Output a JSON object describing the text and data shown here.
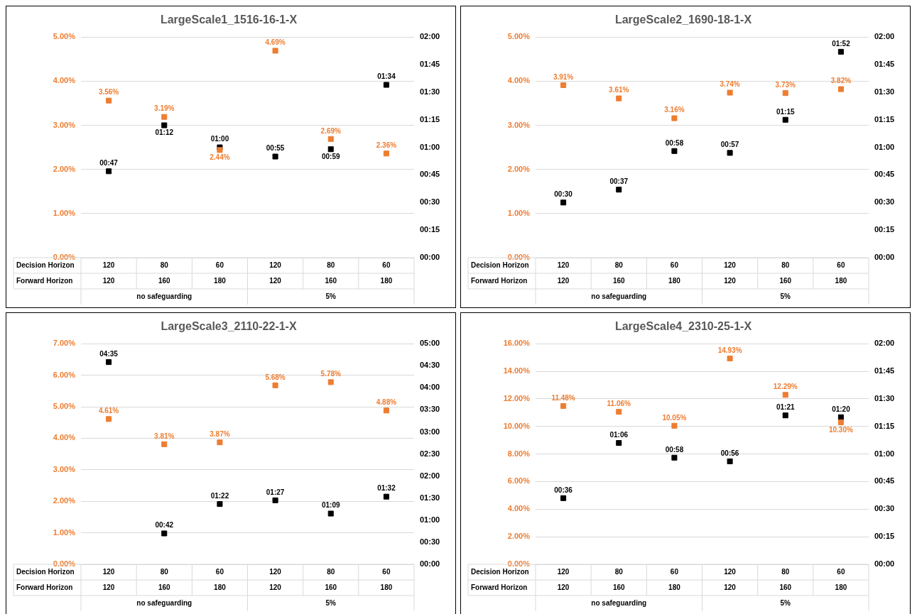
{
  "chart_data": [
    {
      "type": "scatter",
      "title": "LargeScale1_1516-16-1-X",
      "categories": [
        "120",
        "80",
        "60",
        "120",
        "80",
        "60"
      ],
      "marker": "square",
      "grid": "y",
      "legend": false,
      "annotations": [
        "Decision Horizon",
        "Forward Horizon",
        "120",
        "160",
        "180",
        "120",
        "160",
        "180",
        "no safeguarding",
        "5%"
      ],
      "ylim": [
        0,
        5
      ],
      "yticks": [
        {
          "value": 0,
          "label": "0.00%"
        },
        {
          "value": 1,
          "label": "1.00%"
        },
        {
          "value": 2,
          "label": "2.00%"
        },
        {
          "value": 3,
          "label": "3.00%"
        },
        {
          "value": 4,
          "label": "4.00%"
        },
        {
          "value": 5,
          "label": "5.00%"
        }
      ],
      "y2lim": [
        0,
        2
      ],
      "y2ticks": [
        {
          "value": 0,
          "label": "00:00"
        },
        {
          "value": 0.25,
          "label": "00:15"
        },
        {
          "value": 0.5,
          "label": "00:30"
        },
        {
          "value": 0.75,
          "label": "00:45"
        },
        {
          "value": 1,
          "label": "01:00"
        },
        {
          "value": 1.25,
          "label": "01:15"
        },
        {
          "value": 1.5,
          "label": "01:30"
        },
        {
          "value": 1.75,
          "label": "01:45"
        },
        {
          "value": 2,
          "label": "02:00"
        }
      ],
      "series": [
        {
          "color": "#ed7d31",
          "values": [
            3.56,
            3.19,
            2.44,
            4.69,
            2.69,
            2.36
          ],
          "value_labels": [
            "3.56%",
            "3.19%",
            "2.44%",
            "4.69%",
            "2.69%",
            "2.36%"
          ]
        },
        {
          "color": "#000000",
          "axis": "y2",
          "values": [
            0.7833,
            1.2,
            1,
            0.9167,
            0.9833,
            1.5667
          ],
          "value_labels": [
            "00:47",
            "01:12",
            "01:00",
            "00:55",
            "00:59",
            "01:34"
          ]
        }
      ]
    },
    {
      "type": "scatter",
      "title": "LargeScale2_1690-18-1-X",
      "categories": [
        "120",
        "80",
        "60",
        "120",
        "80",
        "60"
      ],
      "marker": "square",
      "grid": "y",
      "legend": false,
      "annotations": [
        "Decision Horizon",
        "Forward Horizon",
        "120",
        "160",
        "180",
        "120",
        "160",
        "180",
        "no safeguarding",
        "5%"
      ],
      "ylim": [
        0,
        5
      ],
      "yticks": [
        {
          "value": 0,
          "label": "0.00%"
        },
        {
          "value": 1,
          "label": "1.00%"
        },
        {
          "value": 2,
          "label": "2.00%"
        },
        {
          "value": 3,
          "label": "3.00%"
        },
        {
          "value": 4,
          "label": "4.00%"
        },
        {
          "value": 5,
          "label": "5.00%"
        }
      ],
      "y2lim": [
        0,
        2
      ],
      "y2ticks": [
        {
          "value": 0,
          "label": "00:00"
        },
        {
          "value": 0.25,
          "label": "00:15"
        },
        {
          "value": 0.5,
          "label": "00:30"
        },
        {
          "value": 0.75,
          "label": "00:45"
        },
        {
          "value": 1,
          "label": "01:00"
        },
        {
          "value": 1.25,
          "label": "01:15"
        },
        {
          "value": 1.5,
          "label": "01:30"
        },
        {
          "value": 1.75,
          "label": "01:45"
        },
        {
          "value": 2,
          "label": "02:00"
        }
      ],
      "series": [
        {
          "color": "#ed7d31",
          "values": [
            3.91,
            3.61,
            3.16,
            3.74,
            3.73,
            3.82
          ],
          "value_labels": [
            "3.91%",
            "3.61%",
            "3.16%",
            "3.74%",
            "3.73%",
            "3.82%"
          ]
        },
        {
          "color": "#000000",
          "axis": "y2",
          "values": [
            0.5,
            0.6167,
            0.9667,
            0.95,
            1.25,
            1.8667
          ],
          "value_labels": [
            "00:30",
            "00:37",
            "00:58",
            "00:57",
            "01:15",
            "01:52"
          ]
        }
      ]
    },
    {
      "type": "scatter",
      "title": "LargeScale3_2110-22-1-X",
      "categories": [
        "120",
        "80",
        "60",
        "120",
        "80",
        "60"
      ],
      "marker": "square",
      "grid": "y",
      "legend": false,
      "annotations": [
        "Decision Horizon",
        "Forward Horizon",
        "120",
        "160",
        "180",
        "120",
        "160",
        "180",
        "no safeguarding",
        "5%"
      ],
      "ylim": [
        0,
        7
      ],
      "yticks": [
        {
          "value": 0,
          "label": "0.00%"
        },
        {
          "value": 1,
          "label": "1.00%"
        },
        {
          "value": 2,
          "label": "2.00%"
        },
        {
          "value": 3,
          "label": "3.00%"
        },
        {
          "value": 4,
          "label": "4.00%"
        },
        {
          "value": 5,
          "label": "5.00%"
        },
        {
          "value": 6,
          "label": "6.00%"
        },
        {
          "value": 7,
          "label": "7.00%"
        }
      ],
      "y2lim": [
        0,
        5
      ],
      "y2ticks": [
        {
          "value": 0,
          "label": "00:00"
        },
        {
          "value": 0.5,
          "label": "00:30"
        },
        {
          "value": 1,
          "label": "01:00"
        },
        {
          "value": 1.5,
          "label": "01:30"
        },
        {
          "value": 2,
          "label": "02:00"
        },
        {
          "value": 2.5,
          "label": "02:30"
        },
        {
          "value": 3,
          "label": "03:00"
        },
        {
          "value": 3.5,
          "label": "03:30"
        },
        {
          "value": 4,
          "label": "04:00"
        },
        {
          "value": 4.5,
          "label": "04:30"
        },
        {
          "value": 5,
          "label": "05:00"
        }
      ],
      "series": [
        {
          "color": "#ed7d31",
          "values": [
            4.61,
            3.81,
            3.87,
            5.68,
            5.78,
            4.88
          ],
          "value_labels": [
            "4.61%",
            "3.81%",
            "3.87%",
            "5.68%",
            "5.78%",
            "4.88%"
          ]
        },
        {
          "color": "#000000",
          "axis": "y2",
          "values": [
            4.5833,
            0.7,
            1.3667,
            1.45,
            1.15,
            1.5333
          ],
          "value_labels": [
            "04:35",
            "00:42",
            "01:22",
            "01:27",
            "01:09",
            "01:32"
          ]
        }
      ]
    },
    {
      "type": "scatter",
      "title": "LargeScale4_2310-25-1-X",
      "categories": [
        "120",
        "80",
        "60",
        "120",
        "80",
        "60"
      ],
      "marker": "square",
      "grid": "y",
      "legend": false,
      "annotations": [
        "Decision Horizon",
        "Forward Horizon",
        "120",
        "160",
        "180",
        "120",
        "160",
        "180",
        "no safeguarding",
        "5%"
      ],
      "ylim": [
        0,
        16
      ],
      "yticks": [
        {
          "value": 0,
          "label": "0.00%"
        },
        {
          "value": 2,
          "label": "2.00%"
        },
        {
          "value": 4,
          "label": "4.00%"
        },
        {
          "value": 6,
          "label": "6.00%"
        },
        {
          "value": 8,
          "label": "8.00%"
        },
        {
          "value": 10,
          "label": "10.00%"
        },
        {
          "value": 12,
          "label": "12.00%"
        },
        {
          "value": 14,
          "label": "14.00%"
        },
        {
          "value": 16,
          "label": "16.00%"
        }
      ],
      "y2lim": [
        0,
        2
      ],
      "y2ticks": [
        {
          "value": 0,
          "label": "00:00"
        },
        {
          "value": 0.25,
          "label": "00:15"
        },
        {
          "value": 0.5,
          "label": "00:30"
        },
        {
          "value": 0.75,
          "label": "00:45"
        },
        {
          "value": 1,
          "label": "01:00"
        },
        {
          "value": 1.25,
          "label": "01:15"
        },
        {
          "value": 1.5,
          "label": "01:30"
        },
        {
          "value": 1.75,
          "label": "01:45"
        },
        {
          "value": 2,
          "label": "02:00"
        }
      ],
      "series": [
        {
          "color": "#ed7d31",
          "values": [
            11.48,
            11.06,
            10.05,
            14.93,
            12.29,
            10.3
          ],
          "value_labels": [
            "11.48%",
            "11.06%",
            "10.05%",
            "14.93%",
            "12.29%",
            "10.30%"
          ]
        },
        {
          "color": "#000000",
          "axis": "y2",
          "values": [
            0.6,
            1.1,
            0.9667,
            0.9333,
            1.35,
            1.3333
          ],
          "value_labels": [
            "00:36",
            "01:06",
            "00:58",
            "00:56",
            "01:21",
            "01:20"
          ]
        }
      ]
    }
  ]
}
